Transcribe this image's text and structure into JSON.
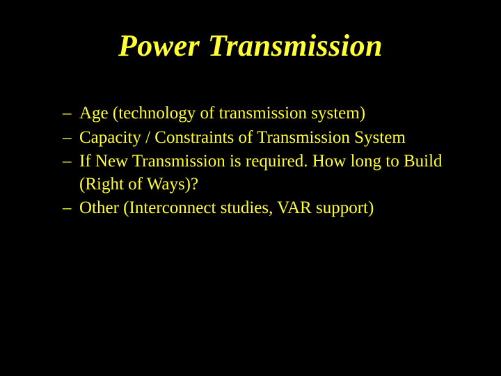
{
  "slide": {
    "background_color": "#000000",
    "text_color": "#ffff33",
    "title": {
      "text": "Power Transmission",
      "font_style": "italic",
      "font_weight": "bold",
      "font_size_pt": 33,
      "align": "center"
    },
    "bullets": {
      "font_size_pt": 19,
      "marker": "–",
      "items": [
        "Age (technology of transmission system)",
        "Capacity / Constraints of Transmission System",
        "If New Transmission is required. How long to Build (Right of Ways)?",
        "Other (Interconnect studies, VAR support)"
      ]
    }
  }
}
